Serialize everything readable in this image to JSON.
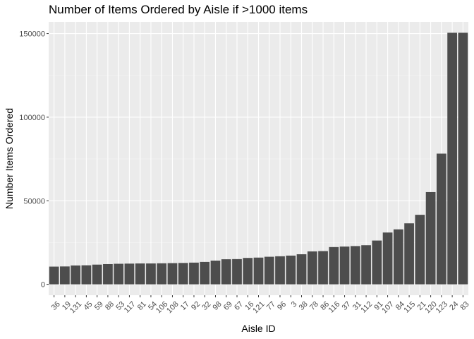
{
  "chart_data": {
    "type": "bar",
    "title": "Number of Items Ordered by Aisle if >1000 items",
    "xlabel": "Aisle ID",
    "ylabel": "Number Items Ordered",
    "ylim": [
      -6500,
      157000
    ],
    "yticks": [
      0,
      50000,
      100000,
      150000
    ],
    "ytick_labels": [
      "0",
      "50000",
      "100000",
      "150000"
    ],
    "grid": true,
    "panel_background": "#ebebeb",
    "bar_color": "#4d4d4d",
    "categories": [
      "36",
      "19",
      "131",
      "45",
      "59",
      "88",
      "53",
      "117",
      "81",
      "54",
      "106",
      "108",
      "17",
      "92",
      "32",
      "98",
      "69",
      "67",
      "16",
      "121",
      "77",
      "96",
      "3",
      "38",
      "78",
      "86",
      "116",
      "37",
      "31",
      "112",
      "91",
      "107",
      "84",
      "115",
      "21",
      "120",
      "123",
      "24",
      "83"
    ],
    "values": [
      10600,
      10700,
      11300,
      11400,
      11800,
      12100,
      12300,
      12400,
      12500,
      12500,
      12600,
      12700,
      12800,
      13000,
      13400,
      14200,
      15000,
      15100,
      15800,
      16000,
      16500,
      16800,
      17200,
      18000,
      19700,
      19900,
      22300,
      22600,
      22900,
      23400,
      26200,
      31000,
      32900,
      36500,
      41600,
      55200,
      78200,
      150500,
      150500
    ]
  }
}
